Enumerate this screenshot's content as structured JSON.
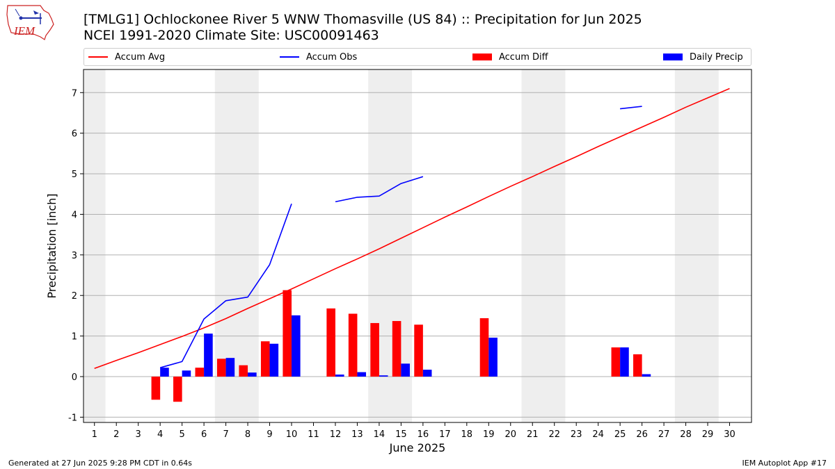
{
  "header": {
    "title_line1": "[TMLG1] Ochlockonee River 5 WNW Thomasville (US 84) :: Precipitation for Jun 2025",
    "title_line2": "NCEI 1991-2020 Climate Site: USC00091463"
  },
  "logo": {
    "text": "IEM",
    "color": "#cc2222"
  },
  "footer": {
    "left": "Generated at 27 Jun 2025 9:28 PM CDT in 0.64s",
    "right": "IEM Autoplot App #17"
  },
  "chart_data": {
    "type": "bar",
    "title": "",
    "xlabel": "June 2025",
    "ylabel": "Precipitation [inch]",
    "xlim": [
      0.5,
      31.0
    ],
    "ylim": [
      -1.13,
      7.57
    ],
    "x_ticks": [
      1,
      2,
      3,
      4,
      5,
      6,
      7,
      8,
      9,
      10,
      11,
      12,
      13,
      14,
      15,
      16,
      17,
      18,
      19,
      20,
      21,
      22,
      23,
      24,
      25,
      26,
      27,
      28,
      29,
      30
    ],
    "y_ticks": [
      -1,
      0,
      1,
      2,
      3,
      4,
      5,
      6,
      7
    ],
    "grid": "horizontal",
    "legend_position": "top",
    "weekend_bands": [
      [
        0.5,
        1.5
      ],
      [
        6.5,
        8.5
      ],
      [
        13.5,
        15.5
      ],
      [
        20.5,
        22.5
      ],
      [
        27.5,
        29.5
      ]
    ],
    "colors": {
      "avg": "#ff0000",
      "obs": "#0000ff",
      "diff": "#ff0000",
      "daily": "#0000ff",
      "band": "#eeeeee",
      "grid": "#b0b0b0"
    },
    "series": [
      {
        "name": "Accum Avg",
        "kind": "line",
        "x": [
          1,
          2,
          3,
          4,
          5,
          6,
          7,
          8,
          9,
          10,
          11,
          12,
          13,
          14,
          15,
          16,
          17,
          18,
          19,
          20,
          21,
          22,
          23,
          24,
          25,
          26,
          27,
          28,
          29,
          30
        ],
        "values": [
          0.2,
          0.4,
          0.59,
          0.79,
          0.99,
          1.2,
          1.43,
          1.68,
          1.92,
          2.16,
          2.41,
          2.66,
          2.9,
          3.15,
          3.41,
          3.67,
          3.93,
          4.18,
          4.44,
          4.69,
          4.93,
          5.18,
          5.42,
          5.67,
          5.91,
          6.15,
          6.39,
          6.64,
          6.87,
          7.1
        ]
      },
      {
        "name": "Accum Obs",
        "kind": "line",
        "x": [
          1,
          2,
          3,
          4,
          5,
          6,
          7,
          8,
          9,
          10,
          11,
          12,
          13,
          14,
          15,
          16,
          17,
          18,
          19,
          20,
          21,
          22,
          23,
          24,
          25,
          26,
          27,
          28,
          29,
          30
        ],
        "values": [
          null,
          null,
          null,
          0.22,
          0.37,
          1.42,
          1.87,
          1.96,
          2.76,
          4.26,
          null,
          4.31,
          4.42,
          4.45,
          4.76,
          4.93,
          null,
          null,
          null,
          null,
          null,
          null,
          null,
          null,
          6.6,
          6.66,
          null,
          null,
          null,
          null
        ]
      },
      {
        "name": "Accum Diff",
        "kind": "bar",
        "x": [
          4,
          5,
          6,
          7,
          8,
          9,
          10,
          12,
          13,
          14,
          15,
          16,
          19,
          25,
          26
        ],
        "values": [
          -0.57,
          -0.62,
          0.22,
          0.44,
          0.28,
          0.87,
          2.13,
          1.68,
          1.55,
          1.32,
          1.37,
          1.28,
          1.44,
          0.72,
          0.55
        ]
      },
      {
        "name": "Daily Precip",
        "kind": "bar",
        "x": [
          4,
          5,
          6,
          7,
          8,
          9,
          10,
          12,
          13,
          14,
          15,
          16,
          19,
          25,
          26
        ],
        "values": [
          0.22,
          0.15,
          1.06,
          0.46,
          0.1,
          0.81,
          1.51,
          0.05,
          0.11,
          0.03,
          0.32,
          0.17,
          0.96,
          0.72,
          0.06
        ]
      }
    ]
  }
}
